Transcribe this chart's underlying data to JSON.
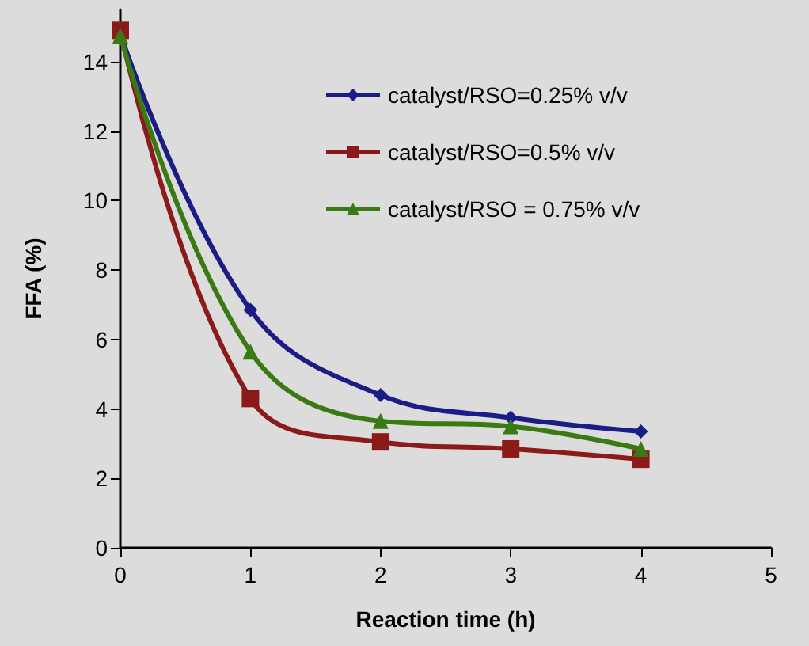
{
  "chart_data": {
    "type": "line",
    "xlabel": "Reaction time (h)",
    "ylabel": "FFA (%)",
    "x": [
      0,
      1,
      2,
      3,
      4
    ],
    "series": [
      {
        "name": "catalyst/RSO=0.25% v/v",
        "color": "#1c1c86",
        "marker": "diamond",
        "values": [
          14.8,
          6.85,
          4.4,
          3.75,
          3.35
        ]
      },
      {
        "name": "catalyst/RSO=0.5% v/v",
        "color": "#8b1a1a",
        "marker": "square",
        "values": [
          14.9,
          4.3,
          3.05,
          2.85,
          2.55
        ]
      },
      {
        "name": "catalyst/RSO = 0.75% v/v",
        "color": "#3a7a14",
        "marker": "triangle",
        "values": [
          14.75,
          5.65,
          3.65,
          3.5,
          2.85
        ]
      }
    ],
    "xlim": [
      0,
      5
    ],
    "xticks": [
      0,
      1,
      2,
      3,
      4,
      5
    ],
    "ylim": [
      0,
      15.5
    ],
    "yticks": [
      0,
      2,
      4,
      6,
      8,
      10,
      12,
      14
    ],
    "grid": false,
    "legend": "top right",
    "line_style": "solid"
  }
}
